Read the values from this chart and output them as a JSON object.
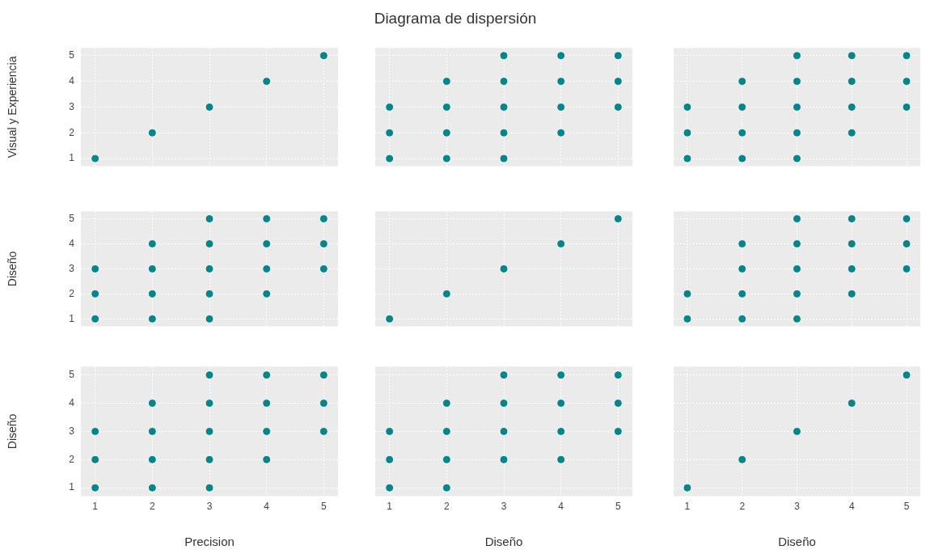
{
  "chart_data": [
    {
      "type": "scatter",
      "ylabel": "Visual y Experiencia",
      "x": [
        1,
        2,
        3,
        4,
        5
      ],
      "values": [
        1,
        2,
        3,
        4,
        5
      ],
      "color": "#00868b",
      "marker": "circle",
      "xlim": [
        0.75,
        5.25
      ],
      "ylim": [
        0.7,
        5.3
      ],
      "xticks": [
        1,
        2,
        3,
        4,
        5
      ],
      "yticks": [
        1,
        2,
        3,
        4,
        5
      ],
      "grid": true,
      "tick_labels": "y"
    },
    {
      "type": "scatter",
      "title": "Diagrama de dispersión",
      "x": [
        1,
        1,
        1,
        2,
        2,
        2,
        2,
        3,
        3,
        3,
        3,
        3,
        4,
        4,
        4,
        4,
        5,
        5,
        5
      ],
      "values": [
        1,
        2,
        3,
        1,
        2,
        3,
        4,
        1,
        2,
        3,
        4,
        5,
        2,
        3,
        4,
        5,
        3,
        4,
        5
      ],
      "color": "#00868b",
      "marker": "circle",
      "xlim": [
        0.75,
        5.25
      ],
      "ylim": [
        0.7,
        5.3
      ],
      "xticks": [
        1,
        2,
        3,
        4,
        5
      ],
      "yticks": [
        1,
        2,
        3,
        4,
        5
      ],
      "grid": true,
      "tick_labels": false
    },
    {
      "type": "scatter",
      "x": [
        1,
        1,
        1,
        2,
        2,
        2,
        2,
        3,
        3,
        3,
        3,
        3,
        4,
        4,
        4,
        4,
        5,
        5,
        5
      ],
      "values": [
        1,
        2,
        3,
        1,
        2,
        3,
        4,
        1,
        2,
        3,
        4,
        5,
        2,
        3,
        4,
        5,
        3,
        4,
        5
      ],
      "color": "#00868b",
      "marker": "circle",
      "xlim": [
        0.75,
        5.25
      ],
      "ylim": [
        0.7,
        5.3
      ],
      "xticks": [
        1,
        2,
        3,
        4,
        5
      ],
      "yticks": [
        1,
        2,
        3,
        4,
        5
      ],
      "grid": true,
      "tick_labels": false
    },
    {
      "type": "scatter",
      "ylabel": "Diseño",
      "x": [
        1,
        1,
        1,
        2,
        2,
        2,
        2,
        3,
        3,
        3,
        3,
        3,
        4,
        4,
        4,
        4,
        5,
        5,
        5
      ],
      "values": [
        1,
        2,
        3,
        1,
        2,
        3,
        4,
        1,
        2,
        3,
        4,
        5,
        2,
        3,
        4,
        5,
        3,
        4,
        5
      ],
      "color": "#00868b",
      "marker": "circle",
      "xlim": [
        0.75,
        5.25
      ],
      "ylim": [
        0.7,
        5.3
      ],
      "xticks": [
        1,
        2,
        3,
        4,
        5
      ],
      "yticks": [
        1,
        2,
        3,
        4,
        5
      ],
      "grid": true,
      "tick_labels": "y"
    },
    {
      "type": "scatter",
      "x": [
        1,
        2,
        3,
        4,
        5
      ],
      "values": [
        1,
        2,
        3,
        4,
        5
      ],
      "color": "#00868b",
      "marker": "circle",
      "xlim": [
        0.75,
        5.25
      ],
      "ylim": [
        0.7,
        5.3
      ],
      "xticks": [
        1,
        2,
        3,
        4,
        5
      ],
      "yticks": [
        1,
        2,
        3,
        4,
        5
      ],
      "grid": true,
      "tick_labels": false
    },
    {
      "type": "scatter",
      "x": [
        1,
        1,
        2,
        2,
        2,
        2,
        3,
        3,
        3,
        3,
        3,
        4,
        4,
        4,
        4,
        5,
        5,
        5
      ],
      "values": [
        1,
        2,
        1,
        2,
        3,
        4,
        1,
        2,
        3,
        4,
        5,
        2,
        3,
        4,
        5,
        3,
        4,
        5
      ],
      "color": "#00868b",
      "marker": "circle",
      "xlim": [
        0.75,
        5.25
      ],
      "ylim": [
        0.7,
        5.3
      ],
      "xticks": [
        1,
        2,
        3,
        4,
        5
      ],
      "yticks": [
        1,
        2,
        3,
        4,
        5
      ],
      "grid": true,
      "tick_labels": false
    },
    {
      "type": "scatter",
      "ylabel": "Diseño",
      "xlabel": "Precision",
      "x": [
        1,
        1,
        1,
        2,
        2,
        2,
        2,
        3,
        3,
        3,
        3,
        3,
        4,
        4,
        4,
        4,
        5,
        5,
        5
      ],
      "values": [
        1,
        2,
        3,
        1,
        2,
        3,
        4,
        1,
        2,
        3,
        4,
        5,
        2,
        3,
        4,
        5,
        3,
        4,
        5
      ],
      "color": "#00868b",
      "marker": "circle",
      "xlim": [
        0.75,
        5.25
      ],
      "ylim": [
        0.7,
        5.3
      ],
      "xticks": [
        1,
        2,
        3,
        4,
        5
      ],
      "yticks": [
        1,
        2,
        3,
        4,
        5
      ],
      "grid": true
    },
    {
      "type": "scatter",
      "xlabel": "Diseño",
      "x": [
        1,
        1,
        1,
        2,
        2,
        2,
        2,
        3,
        3,
        3,
        3,
        4,
        4,
        4,
        4,
        5,
        5,
        5
      ],
      "values": [
        1,
        2,
        3,
        1,
        2,
        3,
        4,
        2,
        3,
        4,
        5,
        2,
        3,
        4,
        5,
        3,
        4,
        5
      ],
      "color": "#00868b",
      "marker": "circle",
      "xlim": [
        0.75,
        5.25
      ],
      "ylim": [
        0.7,
        5.3
      ],
      "xticks": [
        1,
        2,
        3,
        4,
        5
      ],
      "yticks": [
        1,
        2,
        3,
        4,
        5
      ],
      "grid": true,
      "tick_labels": "x"
    },
    {
      "type": "scatter",
      "xlabel": "Diseño",
      "x": [
        1,
        2,
        3,
        4,
        5
      ],
      "values": [
        1,
        2,
        3,
        4,
        5
      ],
      "color": "#00868b",
      "marker": "circle",
      "xlim": [
        0.75,
        5.25
      ],
      "ylim": [
        0.7,
        5.3
      ],
      "xticks": [
        1,
        2,
        3,
        4,
        5
      ],
      "yticks": [
        1,
        2,
        3,
        4,
        5
      ],
      "grid": true,
      "tick_labels": "x"
    }
  ]
}
